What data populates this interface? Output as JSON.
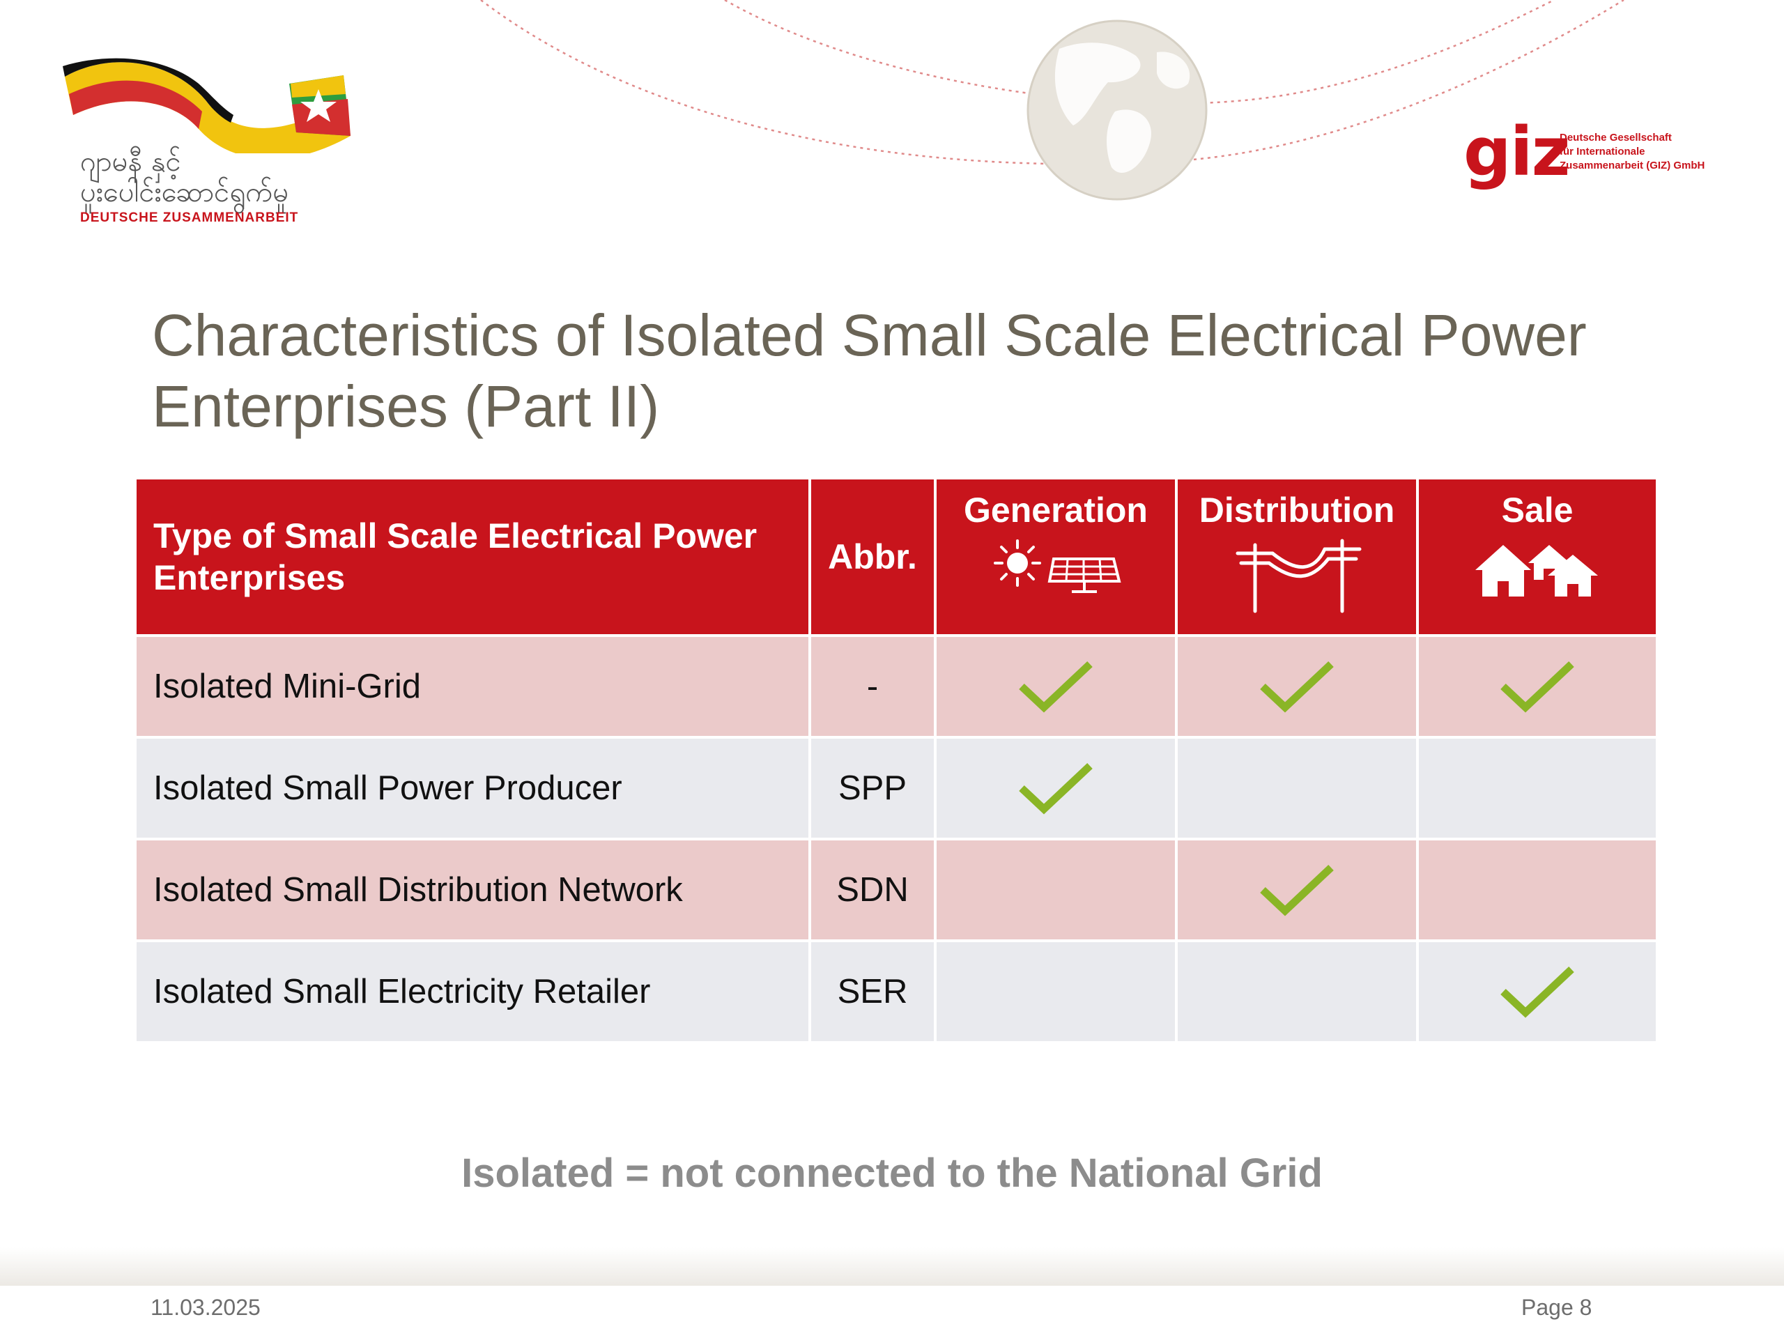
{
  "header": {
    "left_logo": {
      "myanmar_text_line1": "ဂျာမနီ နှင့်",
      "myanmar_text_line2": "ပူးပေါင်းဆောင်ရွက်မှု",
      "caption": "DEUTSCHE ZUSAMMENARBEIT"
    },
    "giz_logo": {
      "wordmark": "giz",
      "line1": "Deutsche Gesellschaft",
      "line2": "für Internationale",
      "line3": "Zusammenarbeit (GIZ) GmbH"
    }
  },
  "title": {
    "line1": "Characteristics of Isolated Small Scale Electrical Power",
    "line2": "Enterprises (Part II)"
  },
  "table": {
    "headers": {
      "type": "Type of Small Scale Electrical Power Enterprises",
      "abbr": "Abbr.",
      "generation": "Generation",
      "distribution": "Distribution",
      "sale": "Sale"
    },
    "header_icons": {
      "generation": "sun-solar-panel-icon",
      "distribution": "power-line-icon",
      "sale": "houses-icon"
    },
    "rows": [
      {
        "type": "Isolated Mini-Grid",
        "abbr": "-",
        "generation": true,
        "distribution": true,
        "sale": true
      },
      {
        "type": "Isolated Small Power Producer",
        "abbr": "SPP",
        "generation": true,
        "distribution": false,
        "sale": false
      },
      {
        "type": "Isolated Small Distribution Network",
        "abbr": "SDN",
        "generation": false,
        "distribution": true,
        "sale": false
      },
      {
        "type": "Isolated Small Electricity Retailer",
        "abbr": "SER",
        "generation": false,
        "distribution": false,
        "sale": true
      }
    ]
  },
  "note": "Isolated = not connected to the National Grid",
  "footer": {
    "date": "11.03.2025",
    "page": "Page 8"
  },
  "colors": {
    "header_red": "#c8141c",
    "row_pink": "#ebcaca",
    "row_grey": "#e9eaee",
    "check_green": "#8ab526",
    "title_color": "#6a6456"
  }
}
